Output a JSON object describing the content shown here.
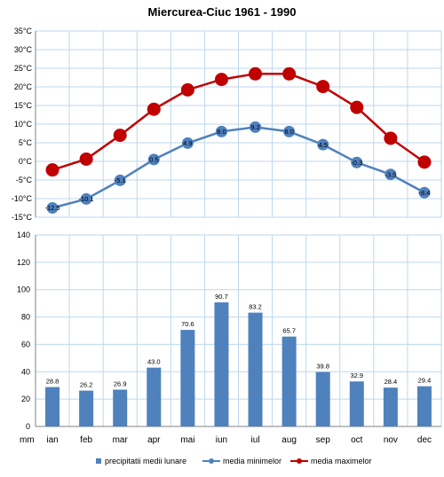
{
  "title": "Miercurea-Ciuc 1961 - 1990",
  "colors": {
    "min": "#4f81bd",
    "max": "#c00000",
    "bars": "#4f81bd",
    "grid": "#bdd7ee"
  },
  "chart_data": [
    {
      "type": "line",
      "categories": [
        "ian",
        "feb",
        "mar",
        "apr",
        "mai",
        "iun",
        "iul",
        "aug",
        "sep",
        "oct",
        "nov",
        "dec"
      ],
      "ylim": [
        -15,
        35
      ],
      "yticks": [
        "35°C",
        "30°C",
        "25°C",
        "20°C",
        "15°C",
        "10°C",
        "5°C",
        "0°C",
        "-5°C",
        "-10°C",
        "-15°C"
      ],
      "grid": true,
      "series": [
        {
          "name": "media minimelor",
          "values": [
            -12.5,
            -10.1,
            -5.1,
            0.5,
            4.9,
            8.0,
            9.2,
            8.0,
            4.5,
            -0.3,
            -3.5,
            -8.4
          ],
          "labels": [
            "-12.5",
            "-10.1",
            "-5.1",
            "0.5",
            "4.9",
            "8.0",
            "9.2",
            "8.0",
            "4.5",
            "-0.3",
            "-3.5",
            "-8.4"
          ]
        },
        {
          "name": "media maximelor",
          "values": [
            -2.3,
            0.6,
            7.0,
            14.0,
            19.2,
            22.0,
            23.5,
            23.5,
            20.1,
            14.5,
            6.2,
            -0.2
          ]
        }
      ]
    },
    {
      "type": "bar",
      "categories": [
        "ian",
        "feb",
        "mar",
        "apr",
        "mai",
        "iun",
        "iul",
        "aug",
        "sep",
        "oct",
        "nov",
        "dec"
      ],
      "ylim": [
        0,
        140
      ],
      "yticks": [
        "140",
        "120",
        "100",
        "80",
        "60",
        "40",
        "20",
        "0"
      ],
      "y_unit": "mm",
      "grid": true,
      "series": [
        {
          "name": "precipitatii medii lunare",
          "values": [
            28.8,
            26.2,
            26.9,
            43.0,
            70.6,
            90.7,
            83.2,
            65.7,
            39.8,
            32.9,
            28.4,
            29.4
          ],
          "labels": [
            "28.8",
            "26.2",
            "26.9",
            "43.0",
            "70.6",
            "90.7",
            "83.2",
            "65.7",
            "39.8",
            "32.9",
            "28.4",
            "29.4"
          ]
        }
      ]
    }
  ],
  "legend": {
    "bars": "precipitatii medii lunare",
    "min": "media minimelor",
    "max": "media maximelor"
  }
}
